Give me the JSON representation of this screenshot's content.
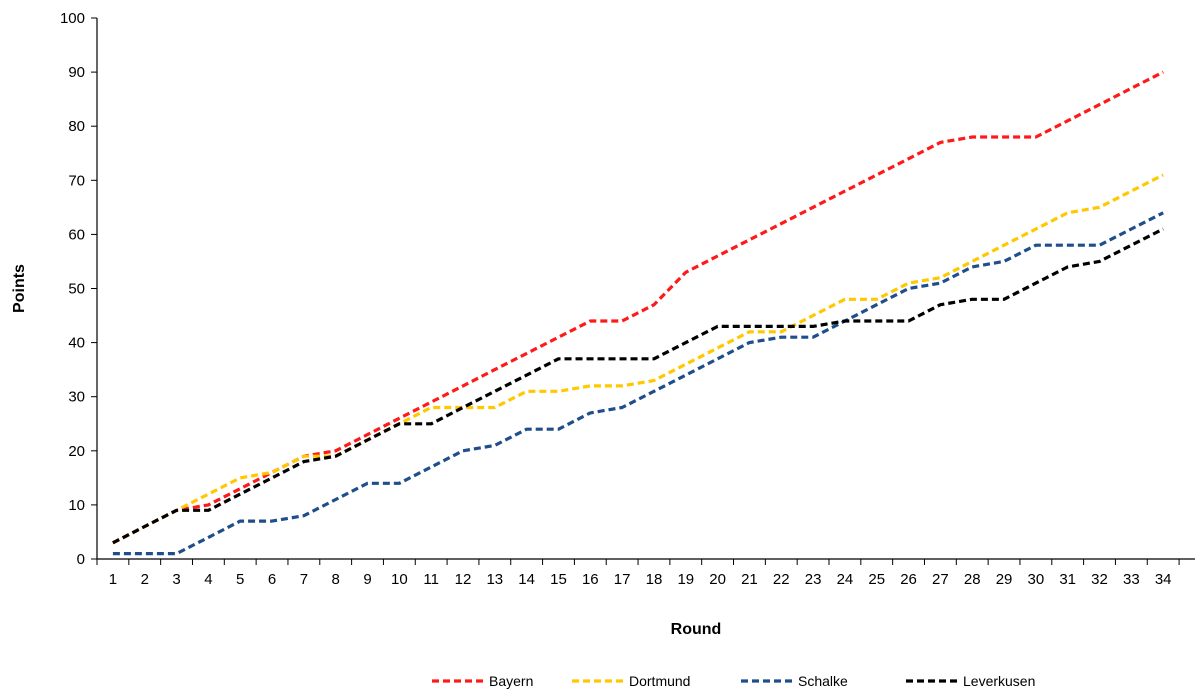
{
  "chart_data": {
    "type": "line",
    "title": "",
    "xlabel": "Round",
    "ylabel": "Points",
    "x": [
      1,
      2,
      3,
      4,
      5,
      6,
      7,
      8,
      9,
      10,
      11,
      12,
      13,
      14,
      15,
      16,
      17,
      18,
      19,
      20,
      21,
      22,
      23,
      24,
      25,
      26,
      27,
      28,
      29,
      30,
      31,
      32,
      33,
      34
    ],
    "ylim": [
      0,
      100
    ],
    "yticks": [
      0,
      10,
      20,
      30,
      40,
      50,
      60,
      70,
      80,
      90,
      100
    ],
    "grid": false,
    "legend_position": "bottom",
    "line_style": "dashed",
    "series": [
      {
        "name": "Bayern",
        "color": "#ff1a1a",
        "values": [
          3,
          6,
          9,
          10,
          13,
          16,
          19,
          20,
          23,
          26,
          29,
          32,
          35,
          38,
          41,
          44,
          44,
          47,
          53,
          56,
          59,
          62,
          65,
          68,
          71,
          74,
          77,
          78,
          78,
          78,
          81,
          84,
          87,
          90
        ]
      },
      {
        "name": "Dortmund",
        "color": "#ffc800",
        "values": [
          3,
          6,
          9,
          12,
          15,
          16,
          19,
          19,
          22,
          25,
          28,
          28,
          28,
          31,
          31,
          32,
          32,
          33,
          36,
          39,
          42,
          42,
          45,
          48,
          48,
          51,
          52,
          55,
          58,
          61,
          64,
          65,
          68,
          71
        ]
      },
      {
        "name": "Schalke",
        "color": "#1f4e8c",
        "values": [
          1,
          1,
          1,
          4,
          7,
          7,
          8,
          11,
          14,
          14,
          17,
          20,
          21,
          24,
          24,
          27,
          28,
          31,
          34,
          37,
          40,
          41,
          41,
          44,
          47,
          50,
          51,
          54,
          55,
          58,
          58,
          58,
          61,
          64
        ]
      },
      {
        "name": "Leverkusen",
        "color": "#000000",
        "values": [
          3,
          6,
          9,
          9,
          12,
          15,
          18,
          19,
          22,
          25,
          25,
          28,
          31,
          34,
          37,
          37,
          37,
          37,
          40,
          43,
          43,
          43,
          43,
          44,
          44,
          44,
          47,
          48,
          48,
          51,
          54,
          55,
          58,
          61
        ]
      }
    ]
  }
}
